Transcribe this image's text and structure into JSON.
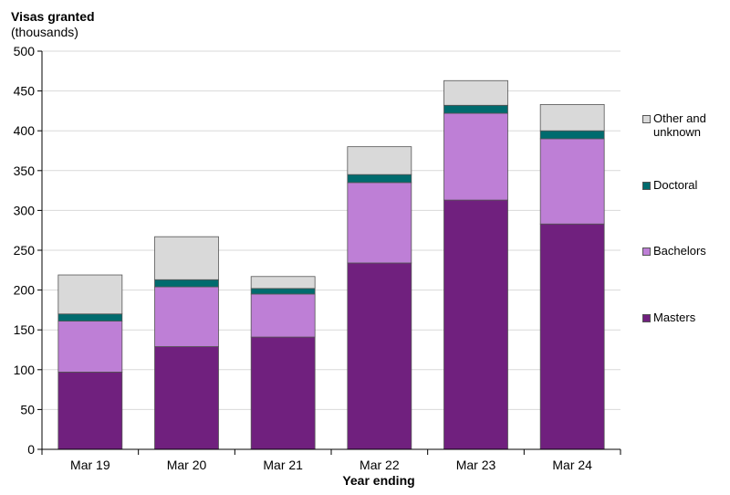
{
  "chart_data": {
    "type": "bar",
    "stacked": true,
    "title": "",
    "ylabel_line1": "Visas granted",
    "ylabel_line2": "(thousands)",
    "xlabel": "Year ending",
    "ylim": [
      0,
      500
    ],
    "yticks": [
      0,
      50,
      100,
      150,
      200,
      250,
      300,
      350,
      400,
      450,
      500
    ],
    "categories": [
      "Mar 19",
      "Mar 20",
      "Mar 21",
      "Mar 22",
      "Mar 23",
      "Mar 24"
    ],
    "series": [
      {
        "name": "Masters",
        "color": "#70207e",
        "values": [
          97,
          129,
          141,
          234,
          313,
          283
        ]
      },
      {
        "name": "Bachelors",
        "color": "#be7fd6",
        "values": [
          64,
          75,
          54,
          101,
          109,
          107
        ]
      },
      {
        "name": "Doctoral",
        "color": "#006b6e",
        "values": [
          9,
          9,
          7,
          10,
          10,
          10
        ]
      },
      {
        "name": "Other and unknown",
        "color": "#d9d9d9",
        "values": [
          49,
          54,
          15,
          35,
          31,
          33
        ]
      }
    ],
    "legend": {
      "position": "right",
      "items": [
        {
          "label_lines": [
            "Other and",
            "unknown"
          ],
          "color": "#d9d9d9"
        },
        {
          "label_lines": [
            "Doctoral"
          ],
          "color": "#006b6e"
        },
        {
          "label_lines": [
            "Bachelors"
          ],
          "color": "#be7fd6"
        },
        {
          "label_lines": [
            "Masters"
          ],
          "color": "#70207e"
        }
      ]
    },
    "grid": true
  }
}
